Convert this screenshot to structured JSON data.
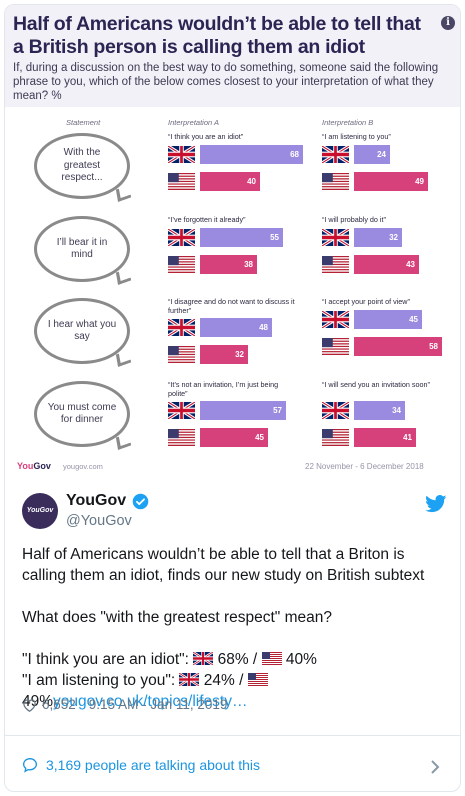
{
  "infographic": {
    "title": "Half of Americans wouldn’t be able to tell that a British person is calling them an idiot",
    "subtitle": "If, during a discussion on the best way to do something, someone said the following phrase to you, which of the below comes closest to your interpretation of what they mean? %",
    "col_statement": "Statement",
    "col_a": "Interpretation A",
    "col_b": "Interpretation B",
    "rows": [
      {
        "statement": "With the greatest respect...",
        "a_quote": "“I think you are an idiot”",
        "a_uk": 68,
        "a_us": 40,
        "b_quote": "“I am listening to you”",
        "b_uk": 24,
        "b_us": 49
      },
      {
        "statement": "I’ll bear it in mind",
        "a_quote": "“I’ve forgotten it already”",
        "a_uk": 55,
        "a_us": 38,
        "b_quote": "“I will probably do it”",
        "b_uk": 32,
        "b_us": 43
      },
      {
        "statement": "I hear what you say",
        "a_quote": "“I disagree and do not want to discuss it further”",
        "a_uk": 48,
        "a_us": 32,
        "b_quote": "“I accept your point of view”",
        "b_uk": 45,
        "b_us": 58
      },
      {
        "statement": "You must come for dinner",
        "a_quote": "“It’s not an invitation, I’m just being polite”",
        "a_uk": 57,
        "a_us": 45,
        "b_quote": "“I will send you an invitation soon”",
        "b_uk": 34,
        "b_us": 41
      }
    ],
    "footer_logo_a": "You",
    "footer_logo_b": "Gov",
    "footer_url": "yougov.com",
    "footer_date": "22 November - 6 December 2018",
    "colors": {
      "uk_bar": "#9a8ae0",
      "us_bar": "#d6407b",
      "header_bg": "#f2f1f8"
    }
  },
  "tweet": {
    "avatar_text": "YouGov",
    "author": "YouGov",
    "handle": "@YouGov",
    "line1": "Half of Americans wouldn’t be able to tell that a Briton is calling them an idiot, finds our new study on British subtext",
    "line2": "What does \"with the greatest respect\" mean?",
    "line3a": "\"I think you are an idiot\": ",
    "line3b": " 68% / ",
    "line3c": " 40%",
    "line4a": "\"I am listening to you\": ",
    "line4b": " 24% / ",
    "line5a": "49%",
    "link": "yougov.co.uk/topics/lifesty…",
    "likes": "6,652",
    "timestamp": "9:15 AM - Jan 11, 2019",
    "talking": "3,169 people are talking about this",
    "icons": [
      "verified-icon",
      "twitter-bird-icon",
      "heart-icon",
      "comment-icon",
      "chevron-right-icon"
    ],
    "accent_color": "#1b95e0"
  }
}
